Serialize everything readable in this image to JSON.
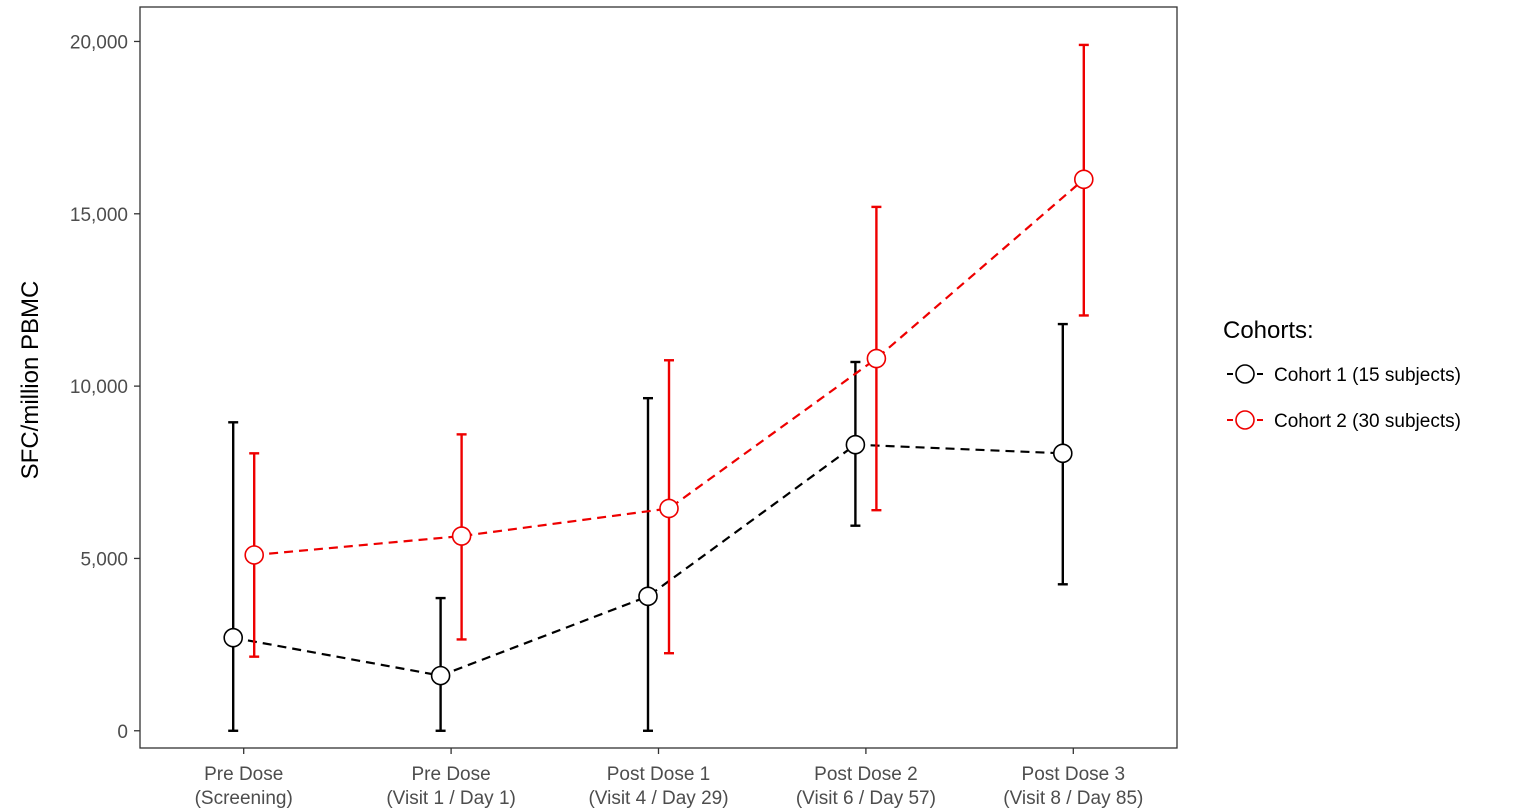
{
  "chart_data": {
    "type": "line",
    "ylabel": "SFC/million PBMC",
    "categories": [
      [
        "Pre Dose",
        "(Screening)"
      ],
      [
        "Pre Dose",
        "(Visit 1 / Day 1)"
      ],
      [
        "Post Dose 1",
        "(Visit 4 / Day 29)"
      ],
      [
        "Post Dose 2",
        "(Visit 6 / Day 57)"
      ],
      [
        "Post Dose 3",
        "(Visit 8 / Day 85)"
      ]
    ],
    "ylim": [
      -500,
      21000
    ],
    "yticks": [
      0,
      5000,
      10000,
      15000,
      20000
    ],
    "ytick_labels": [
      "0",
      "5,000",
      "10,000",
      "15,000",
      "20,000"
    ],
    "legend": {
      "title": "Cohorts:",
      "position": "right"
    },
    "grid": false,
    "series": [
      {
        "name": "Cohort 1 (15 subjects)",
        "color": "#000000",
        "values": [
          2700,
          1600,
          3900,
          8300,
          8050
        ],
        "lower": [
          0,
          0,
          0,
          5950,
          4250
        ],
        "upper": [
          8950,
          3850,
          9650,
          10700,
          11800
        ]
      },
      {
        "name": "Cohort 2 (30 subjects)",
        "color": "#ee0000",
        "values": [
          5100,
          5650,
          6450,
          10800,
          16000
        ],
        "lower": [
          2150,
          2650,
          2250,
          6400,
          12050
        ],
        "upper": [
          8050,
          8600,
          10750,
          15200,
          19900
        ]
      }
    ]
  }
}
